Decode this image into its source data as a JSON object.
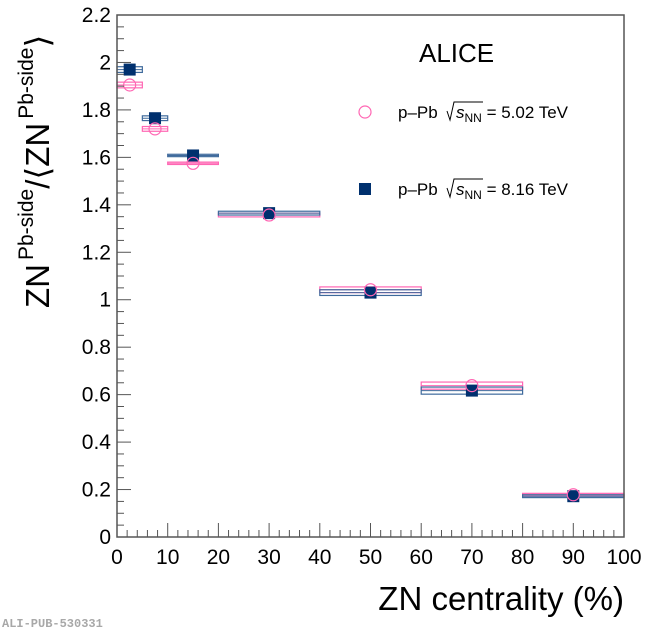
{
  "chart_data": {
    "type": "scatter",
    "title": "",
    "annotation": "ALICE",
    "xlabel": "ZN centrality (%)",
    "ylabel": {
      "base1": "ZN",
      "sup1": "Pb-side",
      "slash": "/⟨ZN",
      "sup2": "Pb-side",
      "close": "⟩"
    },
    "xlim": [
      0,
      100
    ],
    "ylim": [
      0,
      2.2
    ],
    "xticks": [
      "0",
      "10",
      "20",
      "30",
      "40",
      "50",
      "60",
      "70",
      "80",
      "90",
      "100"
    ],
    "yticks": [
      "0",
      "0.2",
      "0.4",
      "0.6",
      "0.8",
      "1",
      "1.2",
      "1.4",
      "1.6",
      "1.8",
      "2",
      "2.2"
    ],
    "grid": false,
    "legend_position": "top-right",
    "series": [
      {
        "name": "p–Pb √s_NN = 5.02 TeV",
        "legend": {
          "prefix": "p–Pb ",
          "s": "s",
          "sub": "NN",
          "suffix": " = 5.02 TeV"
        },
        "marker": "open-circle",
        "color": "#ff66b3",
        "bins": [
          [
            0,
            5
          ],
          [
            5,
            10
          ],
          [
            10,
            20
          ],
          [
            20,
            40
          ],
          [
            40,
            60
          ],
          [
            60,
            80
          ],
          [
            80,
            100
          ]
        ],
        "x": [
          2.5,
          7.5,
          15,
          30,
          50,
          70,
          90
        ],
        "y": [
          1.905,
          1.72,
          1.575,
          1.357,
          1.042,
          0.638,
          0.178
        ],
        "syst": [
          0.012,
          0.01,
          0.005,
          0.008,
          0.012,
          0.015,
          0.006
        ]
      },
      {
        "name": "p–Pb √s_NN = 8.16 TeV",
        "legend": {
          "prefix": "p–Pb ",
          "s": "s",
          "sub": "NN",
          "suffix": " = 8.16 TeV"
        },
        "marker": "filled-square",
        "color": "#00306e",
        "box_color": "#3f6a9c",
        "bins": [
          [
            0,
            5
          ],
          [
            5,
            10
          ],
          [
            10,
            20
          ],
          [
            20,
            40
          ],
          [
            40,
            60
          ],
          [
            60,
            80
          ],
          [
            80,
            100
          ]
        ],
        "x": [
          2.5,
          7.5,
          15,
          30,
          50,
          70,
          90
        ],
        "y": [
          1.97,
          1.765,
          1.608,
          1.365,
          1.03,
          0.617,
          0.172
        ],
        "syst": [
          0.012,
          0.01,
          0.005,
          0.008,
          0.012,
          0.015,
          0.006
        ]
      }
    ]
  },
  "watermark": "ALI-PUB-530331"
}
